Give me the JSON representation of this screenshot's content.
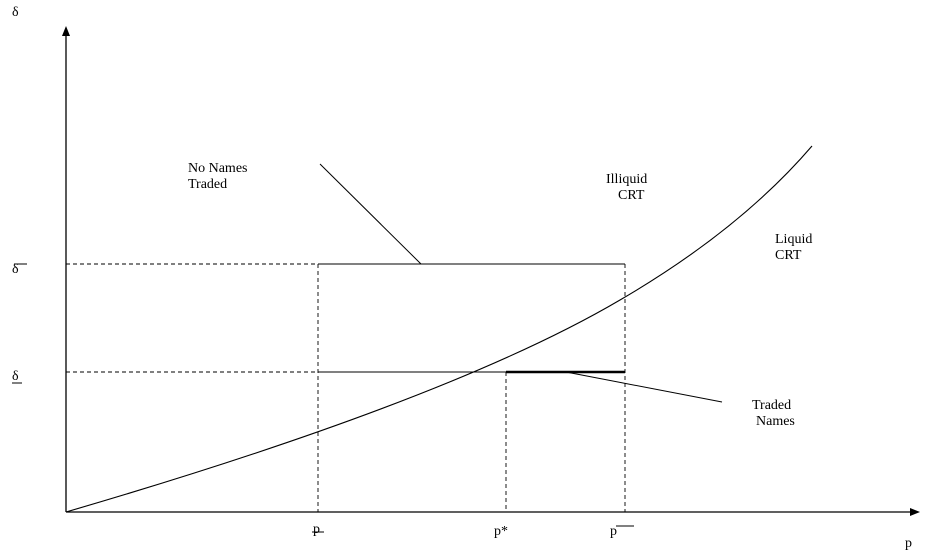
{
  "axes": {
    "y_label": "δ",
    "x_label": "p"
  },
  "ticks": {
    "delta_upper": "δ",
    "delta_lower": "δ",
    "p_lower": "p",
    "p_star": "p*",
    "p_upper": "p"
  },
  "annotations": {
    "no_names_traded": [
      "No Names",
      "Traded"
    ],
    "illiquid_crt": [
      "Illiquid",
      "CRT"
    ],
    "liquid_crt": [
      "Liquid",
      "CRT"
    ],
    "traded_names": [
      "Traded",
      "Names"
    ]
  }
}
